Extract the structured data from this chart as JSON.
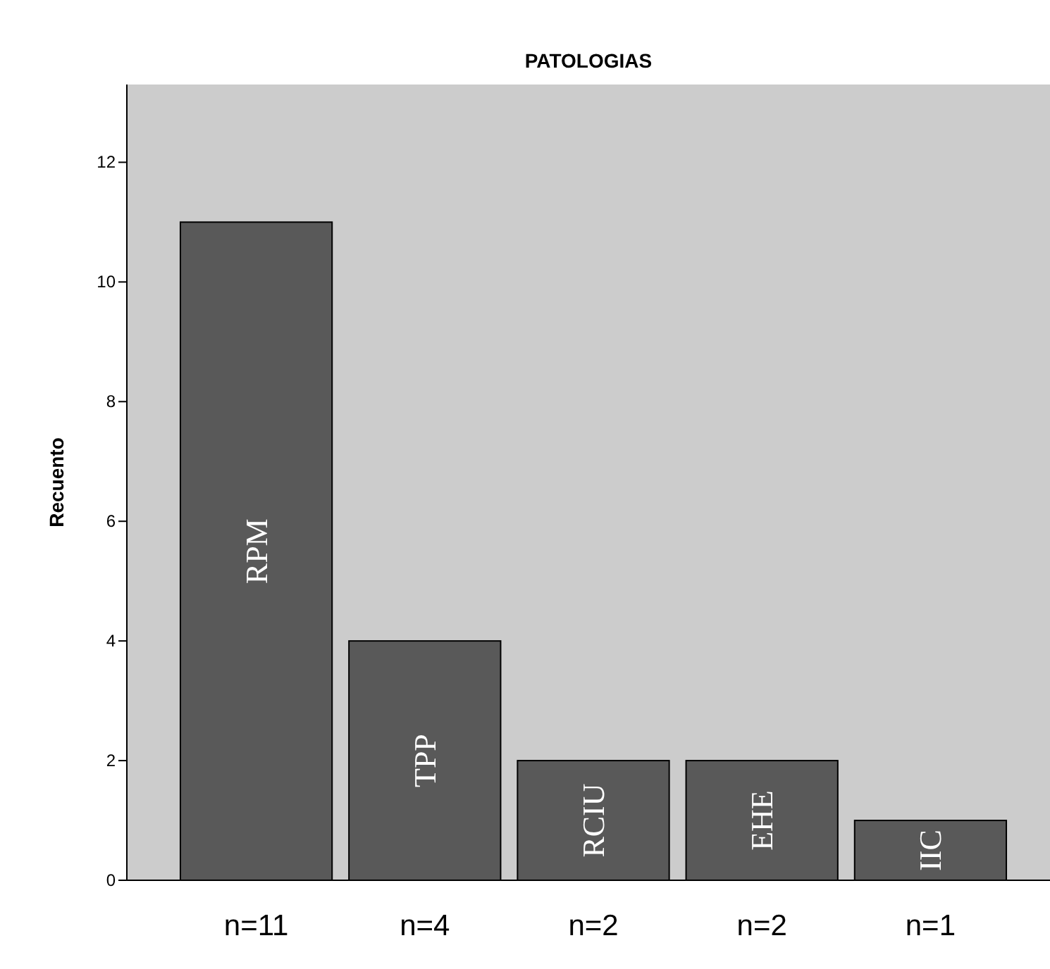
{
  "chart_data": {
    "type": "bar",
    "title": "PATOLOGIAS",
    "ylabel": "Recuento",
    "categories": [
      "RPM",
      "TPP",
      "RCIU",
      "EHE",
      "IIC"
    ],
    "values": [
      11,
      4,
      2,
      2,
      1
    ],
    "value_labels": [
      "n=11",
      "n=4",
      "n=2",
      "n=2",
      "n=1"
    ],
    "color": "#595959",
    "ylim": [
      0,
      13.3
    ],
    "yticks": [
      0,
      2,
      4,
      6,
      8,
      10,
      12
    ],
    "grid": false
  }
}
